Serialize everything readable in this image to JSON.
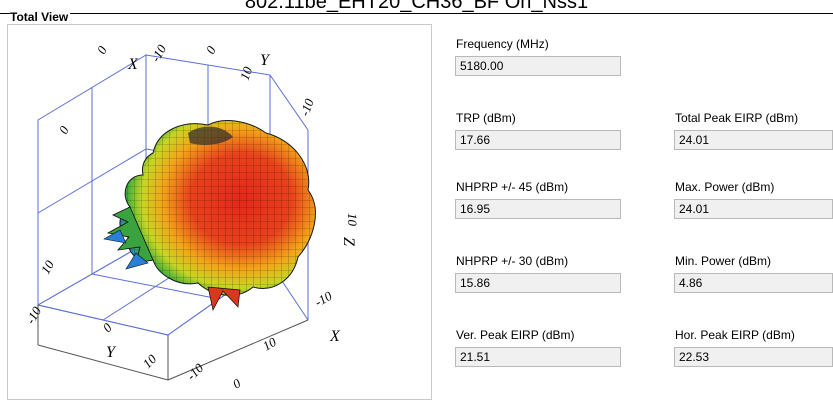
{
  "header": {
    "title": "802.11be_EHT20_CH36_BF On_Nss1",
    "section_label": "Total View"
  },
  "plot": {
    "axis_labels": [
      "X",
      "Y",
      "Z",
      "X",
      "Y"
    ],
    "tick_labels": [
      "-10",
      "0",
      "10",
      "-10",
      "0",
      "10",
      "-10",
      "0",
      "10",
      "-10",
      "0",
      "10",
      "-10",
      "0",
      "10"
    ]
  },
  "fields": {
    "frequency": {
      "label": "Frequency (MHz)",
      "value": "5180.00"
    },
    "trp": {
      "label": "TRP (dBm)",
      "value": "17.66"
    },
    "total_peak_eirp": {
      "label": "Total Peak EIRP (dBm)",
      "value": "24.01"
    },
    "nhprp_45": {
      "label": "NHPRP +/- 45 (dBm)",
      "value": "16.95"
    },
    "max_power": {
      "label": "Max. Power (dBm)",
      "value": "24.01"
    },
    "nhprp_30": {
      "label": "NHPRP +/- 30 (dBm)",
      "value": "15.86"
    },
    "min_power": {
      "label": "Min. Power (dBm)",
      "value": "4.86"
    },
    "ver_peak_eirp": {
      "label": "Ver. Peak EIRP (dBm)",
      "value": "21.51"
    },
    "hor_peak_eirp": {
      "label": "Hor. Peak EIRP (dBm)",
      "value": "22.53"
    }
  },
  "colors": {
    "pattern_high": "#e3281b",
    "pattern_mid": "#f5c01a",
    "pattern_low": "#3fae3a",
    "pattern_min": "#2a7fd6",
    "grid": "#5b6fd6"
  }
}
